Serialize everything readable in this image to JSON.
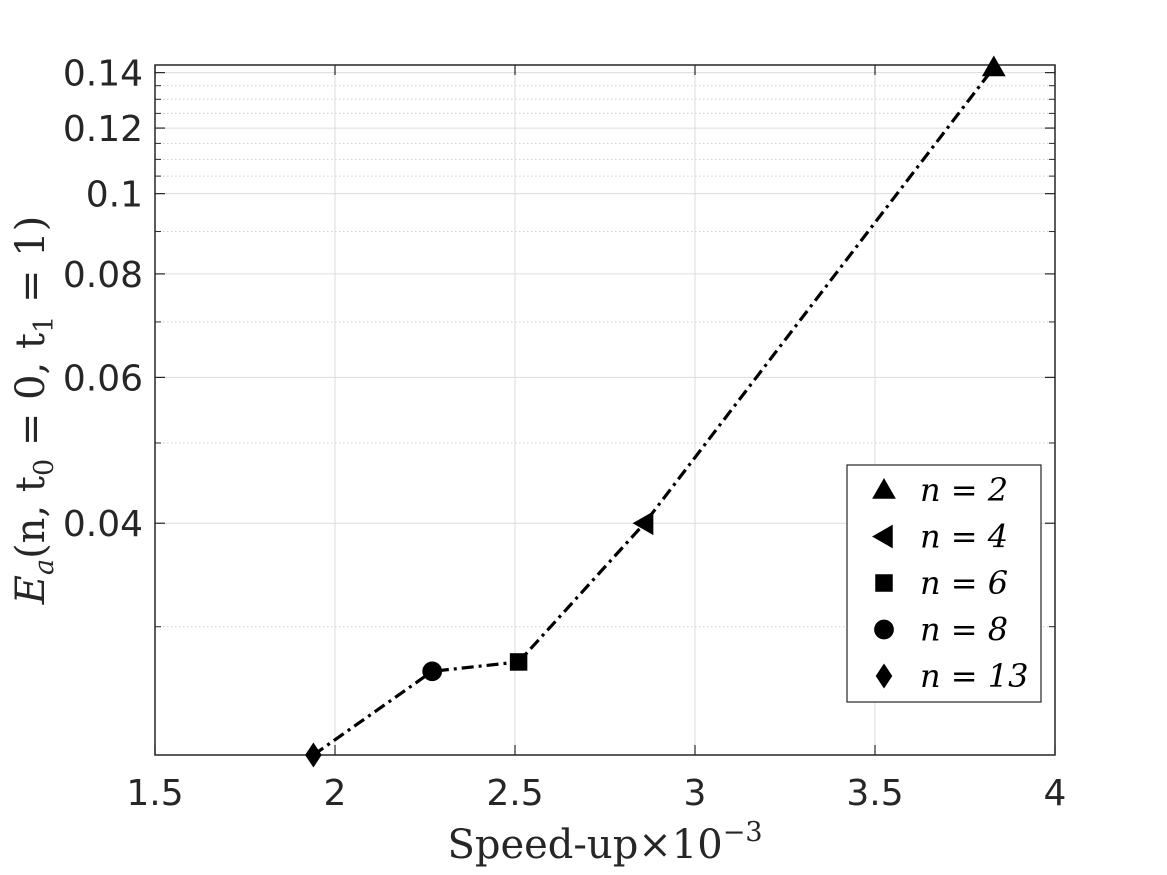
{
  "chart_data": {
    "type": "line",
    "title": "",
    "xlabel": "Speed-up×10",
    "xlabel_exponent": "−3",
    "ylabel_main": "E",
    "ylabel_sub": "a",
    "ylabel_rest": "(n, t",
    "ylabel_sub0": "0",
    "ylabel_mid": " = 0, t",
    "ylabel_sub1": "1",
    "ylabel_end": " = 1)",
    "xlim": [
      1.5,
      4
    ],
    "ylim": [
      0.021,
      0.143
    ],
    "yscale": "log",
    "grid": true,
    "legend_position": "lower-right",
    "x_ticks": [
      {
        "value": 1.5,
        "label": "1.5"
      },
      {
        "value": 2,
        "label": "2"
      },
      {
        "value": 2.5,
        "label": "2.5"
      },
      {
        "value": 3,
        "label": "3"
      },
      {
        "value": 3.5,
        "label": "3.5"
      },
      {
        "value": 4,
        "label": "4"
      }
    ],
    "y_ticks": [
      {
        "value": 0.04,
        "label": "0.04"
      },
      {
        "value": 0.06,
        "label": "0.06"
      },
      {
        "value": 0.08,
        "label": "0.08"
      },
      {
        "value": 0.1,
        "label": "0.1"
      },
      {
        "value": 0.12,
        "label": "0.12"
      },
      {
        "value": 0.14,
        "label": "0.14"
      }
    ],
    "series": [
      {
        "line_style": "dash-dot",
        "color": "#000000",
        "points": [
          {
            "x": 1.94,
            "y": 0.021,
            "marker": "diamond",
            "label": "n = 13"
          },
          {
            "x": 2.27,
            "y": 0.0265,
            "marker": "circle",
            "label": "n = 8"
          },
          {
            "x": 2.51,
            "y": 0.0272,
            "marker": "square",
            "label": "n = 6"
          },
          {
            "x": 2.86,
            "y": 0.04,
            "marker": "triangle-left",
            "label": "n = 4"
          },
          {
            "x": 3.83,
            "y": 0.142,
            "marker": "triangle-up",
            "label": "n = 2"
          }
        ]
      }
    ],
    "legend": [
      {
        "marker": "triangle-up",
        "label": "n = 2"
      },
      {
        "marker": "triangle-left",
        "label": "n = 4"
      },
      {
        "marker": "square",
        "label": "n = 6"
      },
      {
        "marker": "circle",
        "label": "n = 8"
      },
      {
        "marker": "diamond",
        "label": "n = 13"
      }
    ]
  }
}
